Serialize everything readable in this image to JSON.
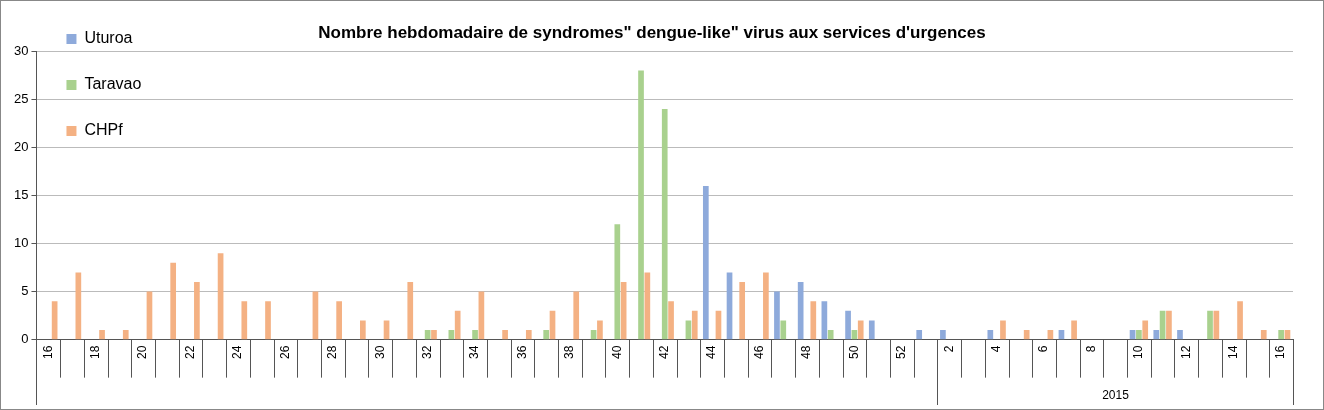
{
  "chart_data": {
    "type": "bar",
    "title": "Nombre hebdomadaire de syndromes\" dengue-like\" virus aux services d'urgences",
    "categories": [
      "16",
      null,
      "18",
      null,
      "20",
      null,
      "22",
      null,
      "24",
      null,
      "26",
      null,
      "28",
      null,
      "30",
      null,
      "32",
      null,
      "34",
      null,
      "36",
      null,
      "38",
      null,
      "40",
      null,
      "42",
      null,
      "44",
      null,
      "46",
      null,
      "48",
      null,
      "50",
      null,
      "52",
      null,
      "2",
      null,
      "4",
      null,
      "6",
      null,
      "8",
      null,
      "10",
      null,
      "12",
      null,
      "14",
      null,
      "16"
    ],
    "series": [
      {
        "name": "Uturoa",
        "color": "#8eaadb",
        "values": [
          0,
          0,
          0,
          0,
          0,
          0,
          0,
          0,
          0,
          0,
          0,
          0,
          0,
          0,
          0,
          0,
          0,
          0,
          0,
          0,
          0,
          0,
          0,
          0,
          0,
          0,
          0,
          0,
          16,
          7,
          0,
          5,
          6,
          4,
          3,
          2,
          0,
          1,
          1,
          0,
          1,
          0,
          0,
          1,
          0,
          0,
          1,
          1,
          1,
          0,
          0,
          0,
          0
        ]
      },
      {
        "name": "Taravao",
        "color": "#a9d18e",
        "values": [
          0,
          0,
          0,
          0,
          0,
          0,
          0,
          0,
          0,
          0,
          0,
          0,
          0,
          0,
          0,
          0,
          1,
          1,
          1,
          0,
          0,
          1,
          0,
          1,
          12,
          28,
          24,
          2,
          0,
          0,
          0,
          2,
          0,
          1,
          1,
          0,
          0,
          0,
          0,
          0,
          0,
          0,
          0,
          0,
          0,
          0,
          1,
          3,
          0,
          3,
          0,
          0,
          1
        ]
      },
      {
        "name": "CHPf",
        "color": "#f4b183",
        "values": [
          4,
          7,
          1,
          1,
          5,
          8,
          6,
          9,
          4,
          4,
          0,
          5,
          4,
          2,
          2,
          6,
          1,
          3,
          5,
          1,
          1,
          3,
          5,
          2,
          6,
          7,
          4,
          3,
          3,
          6,
          7,
          0,
          4,
          0,
          2,
          0,
          0,
          0,
          0,
          0,
          2,
          1,
          1,
          2,
          0,
          0,
          2,
          3,
          0,
          3,
          4,
          1,
          1
        ]
      }
    ],
    "ylim": [
      0,
      30
    ],
    "yticks": [
      0,
      5,
      10,
      15,
      20,
      25,
      30
    ],
    "grid": "y",
    "legend": "top left",
    "annotations": [
      "2015"
    ]
  }
}
